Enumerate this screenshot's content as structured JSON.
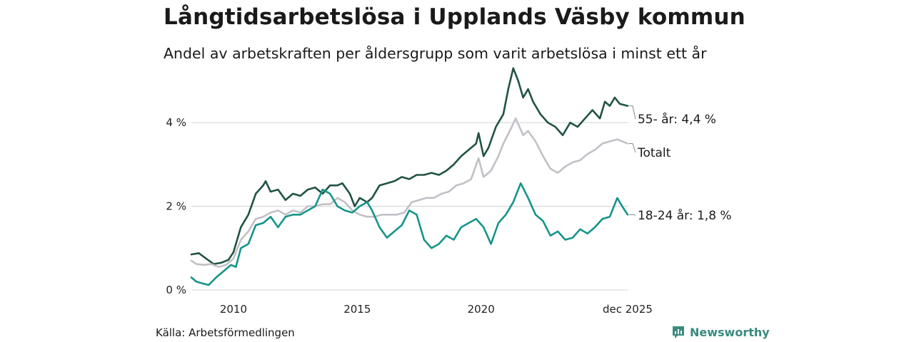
{
  "title": "Långtidsarbetslösa i Upplands Väsby kommun",
  "subtitle": "Andel av arbetskraften per åldersgrupp som varit arbetslösa i minst ett år",
  "source": "Källa: Arbetsförmedlingen",
  "brand": {
    "name": "Newsworthy",
    "icon": "newsworthy-logo-icon"
  },
  "colors": {
    "age55": "#215343",
    "total": "#c2c0c7",
    "age1824": "#16948a",
    "grid": "#dcdcdc",
    "brand": "#3a8a7e"
  },
  "chart_data": {
    "type": "line",
    "title": "Långtidsarbetslösa i Upplands Väsby kommun",
    "subtitle": "Andel av arbetskraften per åldersgrupp som varit arbetslösa i minst ett år",
    "xlabel": "",
    "ylabel": "",
    "x_range": [
      2008.3,
      2025.95
    ],
    "ylim": [
      0,
      5.5
    ],
    "y_ticks": [
      {
        "value": 0,
        "label": "0 %"
      },
      {
        "value": 2,
        "label": "2 %"
      },
      {
        "value": 4,
        "label": "4 %"
      }
    ],
    "x_ticks": [
      {
        "value": 2010,
        "label": "2010"
      },
      {
        "value": 2015,
        "label": "2015"
      },
      {
        "value": 2020,
        "label": "2020"
      },
      {
        "value": 2025.92,
        "label": "dec 2025"
      }
    ],
    "grid": true,
    "legend": "end-of-line labels",
    "series": [
      {
        "name": "55- år",
        "end_label": "55- år: 4,4 %",
        "color": "#215343",
        "points": [
          [
            2008.3,
            0.85
          ],
          [
            2008.6,
            0.88
          ],
          [
            2008.9,
            0.75
          ],
          [
            2009.2,
            0.62
          ],
          [
            2009.5,
            0.65
          ],
          [
            2009.8,
            0.72
          ],
          [
            2010.0,
            0.9
          ],
          [
            2010.3,
            1.5
          ],
          [
            2010.6,
            1.8
          ],
          [
            2010.9,
            2.3
          ],
          [
            2011.2,
            2.5
          ],
          [
            2011.3,
            2.6
          ],
          [
            2011.5,
            2.35
          ],
          [
            2011.8,
            2.4
          ],
          [
            2012.1,
            2.15
          ],
          [
            2012.4,
            2.3
          ],
          [
            2012.7,
            2.25
          ],
          [
            2013.0,
            2.4
          ],
          [
            2013.3,
            2.45
          ],
          [
            2013.6,
            2.3
          ],
          [
            2013.9,
            2.5
          ],
          [
            2014.2,
            2.5
          ],
          [
            2014.4,
            2.55
          ],
          [
            2014.7,
            2.3
          ],
          [
            2014.9,
            2.0
          ],
          [
            2015.1,
            2.2
          ],
          [
            2015.4,
            2.1
          ],
          [
            2015.6,
            2.2
          ],
          [
            2015.9,
            2.5
          ],
          [
            2016.2,
            2.55
          ],
          [
            2016.5,
            2.6
          ],
          [
            2016.8,
            2.7
          ],
          [
            2017.1,
            2.65
          ],
          [
            2017.4,
            2.75
          ],
          [
            2017.7,
            2.75
          ],
          [
            2018.0,
            2.8
          ],
          [
            2018.3,
            2.75
          ],
          [
            2018.6,
            2.85
          ],
          [
            2018.9,
            3.0
          ],
          [
            2019.2,
            3.2
          ],
          [
            2019.5,
            3.35
          ],
          [
            2019.8,
            3.5
          ],
          [
            2019.9,
            3.75
          ],
          [
            2020.1,
            3.2
          ],
          [
            2020.3,
            3.4
          ],
          [
            2020.6,
            3.9
          ],
          [
            2020.9,
            4.2
          ],
          [
            2021.1,
            4.8
          ],
          [
            2021.3,
            5.3
          ],
          [
            2021.5,
            5.0
          ],
          [
            2021.7,
            4.6
          ],
          [
            2021.9,
            4.8
          ],
          [
            2022.1,
            4.5
          ],
          [
            2022.4,
            4.2
          ],
          [
            2022.7,
            4.0
          ],
          [
            2023.0,
            3.9
          ],
          [
            2023.3,
            3.7
          ],
          [
            2023.6,
            4.0
          ],
          [
            2023.9,
            3.9
          ],
          [
            2024.2,
            4.1
          ],
          [
            2024.5,
            4.3
          ],
          [
            2024.8,
            4.1
          ],
          [
            2025.0,
            4.5
          ],
          [
            2025.2,
            4.4
          ],
          [
            2025.4,
            4.6
          ],
          [
            2025.6,
            4.45
          ],
          [
            2025.92,
            4.4
          ]
        ]
      },
      {
        "name": "Totalt",
        "end_label": "Totalt",
        "color": "#c2c0c7",
        "points": [
          [
            2008.3,
            0.7
          ],
          [
            2008.5,
            0.62
          ],
          [
            2008.8,
            0.6
          ],
          [
            2009.1,
            0.62
          ],
          [
            2009.4,
            0.55
          ],
          [
            2009.7,
            0.6
          ],
          [
            2010.0,
            0.75
          ],
          [
            2010.3,
            1.2
          ],
          [
            2010.6,
            1.4
          ],
          [
            2010.9,
            1.7
          ],
          [
            2011.2,
            1.75
          ],
          [
            2011.5,
            1.85
          ],
          [
            2011.8,
            1.9
          ],
          [
            2012.1,
            1.8
          ],
          [
            2012.4,
            1.9
          ],
          [
            2012.7,
            1.85
          ],
          [
            2013.0,
            2.0
          ],
          [
            2013.3,
            2.0
          ],
          [
            2013.6,
            2.05
          ],
          [
            2013.9,
            2.05
          ],
          [
            2014.2,
            2.2
          ],
          [
            2014.5,
            2.1
          ],
          [
            2014.8,
            1.9
          ],
          [
            2015.1,
            1.8
          ],
          [
            2015.4,
            1.75
          ],
          [
            2015.7,
            1.75
          ],
          [
            2016.0,
            1.8
          ],
          [
            2016.3,
            1.8
          ],
          [
            2016.6,
            1.8
          ],
          [
            2016.9,
            1.85
          ],
          [
            2017.2,
            2.1
          ],
          [
            2017.5,
            2.15
          ],
          [
            2017.8,
            2.2
          ],
          [
            2018.1,
            2.2
          ],
          [
            2018.4,
            2.3
          ],
          [
            2018.7,
            2.35
          ],
          [
            2019.0,
            2.5
          ],
          [
            2019.3,
            2.55
          ],
          [
            2019.6,
            2.65
          ],
          [
            2019.9,
            3.15
          ],
          [
            2020.1,
            2.7
          ],
          [
            2020.4,
            2.85
          ],
          [
            2020.7,
            3.2
          ],
          [
            2020.9,
            3.5
          ],
          [
            2021.2,
            3.85
          ],
          [
            2021.4,
            4.1
          ],
          [
            2021.7,
            3.7
          ],
          [
            2021.9,
            3.8
          ],
          [
            2022.2,
            3.55
          ],
          [
            2022.5,
            3.2
          ],
          [
            2022.8,
            2.9
          ],
          [
            2023.1,
            2.8
          ],
          [
            2023.4,
            2.95
          ],
          [
            2023.7,
            3.05
          ],
          [
            2024.0,
            3.1
          ],
          [
            2024.3,
            3.25
          ],
          [
            2024.6,
            3.35
          ],
          [
            2024.9,
            3.5
          ],
          [
            2025.2,
            3.55
          ],
          [
            2025.5,
            3.6
          ],
          [
            2025.92,
            3.5
          ]
        ]
      },
      {
        "name": "18-24 år",
        "end_label": "18-24 år: 1,8 %",
        "color": "#16948a",
        "points": [
          [
            2008.3,
            0.3
          ],
          [
            2008.5,
            0.2
          ],
          [
            2008.8,
            0.15
          ],
          [
            2009.0,
            0.12
          ],
          [
            2009.3,
            0.3
          ],
          [
            2009.6,
            0.45
          ],
          [
            2009.9,
            0.6
          ],
          [
            2010.1,
            0.55
          ],
          [
            2010.3,
            1.0
          ],
          [
            2010.6,
            1.1
          ],
          [
            2010.9,
            1.55
          ],
          [
            2011.2,
            1.6
          ],
          [
            2011.5,
            1.75
          ],
          [
            2011.8,
            1.5
          ],
          [
            2012.1,
            1.75
          ],
          [
            2012.4,
            1.8
          ],
          [
            2012.7,
            1.8
          ],
          [
            2013.0,
            1.9
          ],
          [
            2013.3,
            2.0
          ],
          [
            2013.6,
            2.4
          ],
          [
            2013.9,
            2.3
          ],
          [
            2014.2,
            2.0
          ],
          [
            2014.5,
            1.9
          ],
          [
            2014.8,
            1.85
          ],
          [
            2015.1,
            2.0
          ],
          [
            2015.4,
            2.1
          ],
          [
            2015.6,
            1.9
          ],
          [
            2015.9,
            1.5
          ],
          [
            2016.2,
            1.25
          ],
          [
            2016.5,
            1.4
          ],
          [
            2016.8,
            1.55
          ],
          [
            2017.1,
            1.9
          ],
          [
            2017.4,
            1.8
          ],
          [
            2017.7,
            1.2
          ],
          [
            2018.0,
            1.0
          ],
          [
            2018.3,
            1.1
          ],
          [
            2018.6,
            1.3
          ],
          [
            2018.9,
            1.2
          ],
          [
            2019.2,
            1.5
          ],
          [
            2019.5,
            1.6
          ],
          [
            2019.8,
            1.7
          ],
          [
            2020.1,
            1.5
          ],
          [
            2020.4,
            1.1
          ],
          [
            2020.7,
            1.6
          ],
          [
            2021.0,
            1.8
          ],
          [
            2021.3,
            2.1
          ],
          [
            2021.6,
            2.55
          ],
          [
            2021.9,
            2.2
          ],
          [
            2022.2,
            1.8
          ],
          [
            2022.5,
            1.65
          ],
          [
            2022.8,
            1.3
          ],
          [
            2023.1,
            1.4
          ],
          [
            2023.4,
            1.2
          ],
          [
            2023.7,
            1.25
          ],
          [
            2024.0,
            1.45
          ],
          [
            2024.3,
            1.35
          ],
          [
            2024.6,
            1.5
          ],
          [
            2024.9,
            1.7
          ],
          [
            2025.2,
            1.75
          ],
          [
            2025.5,
            2.2
          ],
          [
            2025.7,
            2.0
          ],
          [
            2025.92,
            1.8
          ]
        ]
      }
    ]
  }
}
